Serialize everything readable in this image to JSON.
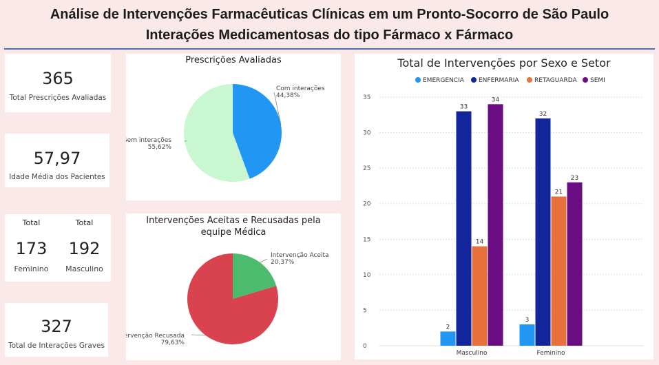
{
  "header": {
    "title_line1": "Análise de Intervenções Farmacêuticas Clínicas em um Pronto-Socorro de São Paulo",
    "title_line2": "Interações Medicamentosas do tipo Fármaco x Fármaco"
  },
  "kpis": {
    "prescriptions": {
      "value": "365",
      "label": "Total Prescrições Avaliadas"
    },
    "age": {
      "value": "57,97",
      "label": "Idade Média dos Pacientes"
    },
    "sex": {
      "female": {
        "top": "Total",
        "value": "173",
        "label": "Feminino"
      },
      "male": {
        "top": "Total",
        "value": "192",
        "label": "Masculino"
      }
    },
    "severe": {
      "value": "327",
      "label": "Total de Interações Graves"
    }
  },
  "chart_data": [
    {
      "type": "pie",
      "title": "Prescrições Avaliadas",
      "slices": [
        {
          "label": "Com interações",
          "value": 44.38,
          "value_label": "44,38%",
          "color": "#2196f3"
        },
        {
          "label": "Sem interações",
          "value": 55.62,
          "value_label": "55,62%",
          "color": "#c8f7d0"
        }
      ]
    },
    {
      "type": "pie",
      "title": "Intervenções Aceitas e Recusadas pela equipe Médica",
      "slices": [
        {
          "label": "Intervenção Aceita",
          "value": 20.37,
          "value_label": "20,37%",
          "color": "#4dbb6d"
        },
        {
          "label": "Intervenção Recusada",
          "value": 79.63,
          "value_label": "79,63%",
          "color": "#d9434f"
        }
      ]
    },
    {
      "type": "bar",
      "title": "Total de Intervenções por Sexo e Setor",
      "categories": [
        "Masculino",
        "Feminino"
      ],
      "series": [
        {
          "name": "EMERGENCIA",
          "values": [
            2,
            3
          ],
          "color": "#2196f3"
        },
        {
          "name": "ENFERMARIA",
          "values": [
            33,
            32
          ],
          "color": "#13259b"
        },
        {
          "name": "RETAGUARDA",
          "values": [
            14,
            21
          ],
          "color": "#e8703a"
        },
        {
          "name": "SEMI",
          "values": [
            34,
            23
          ],
          "color": "#6a0d83"
        }
      ],
      "ylim": [
        0,
        35
      ],
      "yticks": [
        0,
        5,
        10,
        15,
        20,
        25,
        30,
        35
      ],
      "grid": true,
      "legend": "top-center"
    }
  ]
}
